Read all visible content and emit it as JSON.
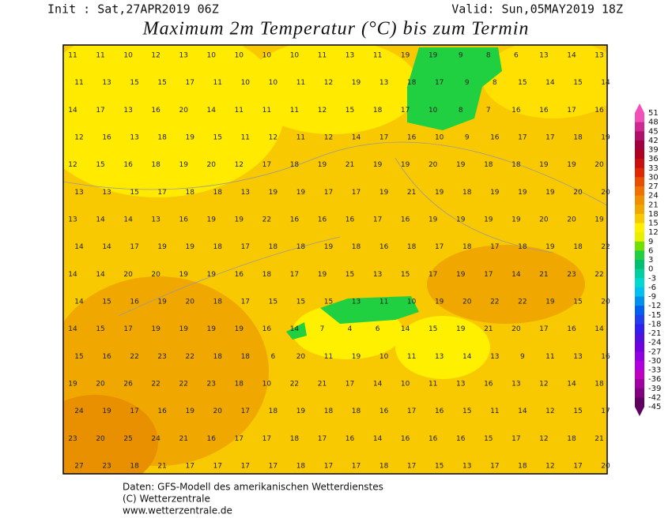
{
  "header": {
    "init": "Init : Sat,27APR2019 06Z",
    "valid": "Valid: Sun,05MAY2019 18Z",
    "title": "Maximum 2m Temperatur (°C) bis zum Termin"
  },
  "map": {
    "rows": [
      [
        11,
        11,
        10,
        12,
        13,
        10,
        10,
        10,
        10,
        11,
        13,
        11,
        19,
        19,
        9,
        8,
        6,
        13,
        14,
        13
      ],
      [
        11,
        13,
        15,
        15,
        17,
        11,
        10,
        10,
        11,
        12,
        19,
        13,
        18,
        17,
        9,
        8,
        15,
        14,
        15,
        14
      ],
      [
        14,
        17,
        13,
        16,
        20,
        14,
        11,
        11,
        11,
        12,
        15,
        18,
        17,
        10,
        8,
        7,
        16,
        16,
        17,
        16
      ],
      [
        12,
        16,
        13,
        18,
        19,
        15,
        11,
        12,
        11,
        12,
        14,
        17,
        16,
        10,
        9,
        16,
        17,
        17,
        18,
        19
      ],
      [
        12,
        15,
        16,
        18,
        19,
        20,
        12,
        17,
        18,
        19,
        21,
        19,
        19,
        20,
        19,
        18,
        18,
        19,
        19,
        20
      ],
      [
        13,
        13,
        15,
        17,
        18,
        18,
        13,
        19,
        19,
        17,
        17,
        19,
        21,
        19,
        18,
        19,
        19,
        19,
        20,
        20
      ],
      [
        13,
        14,
        14,
        13,
        16,
        19,
        19,
        22,
        16,
        16,
        16,
        17,
        16,
        19,
        19,
        19,
        19,
        20,
        20,
        19
      ],
      [
        14,
        14,
        17,
        19,
        19,
        18,
        17,
        18,
        18,
        19,
        18,
        16,
        18,
        17,
        18,
        17,
        18,
        19,
        18,
        22
      ],
      [
        14,
        14,
        20,
        20,
        19,
        19,
        16,
        18,
        17,
        19,
        15,
        13,
        15,
        17,
        19,
        17,
        14,
        21,
        23,
        22
      ],
      [
        14,
        15,
        16,
        19,
        20,
        18,
        17,
        15,
        15,
        15,
        13,
        11,
        10,
        19,
        20,
        22,
        22,
        19,
        15,
        20
      ],
      [
        14,
        15,
        17,
        19,
        19,
        19,
        19,
        16,
        14,
        7,
        4,
        6,
        14,
        15,
        19,
        21,
        20,
        17,
        16,
        14
      ],
      [
        15,
        16,
        22,
        23,
        22,
        18,
        18,
        6,
        20,
        11,
        19,
        10,
        11,
        13,
        14,
        13,
        9,
        11,
        13,
        16
      ],
      [
        19,
        20,
        26,
        22,
        22,
        23,
        18,
        10,
        22,
        21,
        17,
        14,
        10,
        11,
        13,
        16,
        13,
        12,
        14,
        18
      ],
      [
        24,
        19,
        17,
        16,
        19,
        20,
        17,
        18,
        19,
        18,
        18,
        16,
        17,
        16,
        15,
        11,
        14,
        12,
        15,
        17
      ],
      [
        23,
        20,
        25,
        24,
        21,
        16,
        17,
        17,
        18,
        17,
        16,
        14,
        16,
        16,
        16,
        15,
        17,
        12,
        18,
        21
      ],
      [
        27,
        23,
        18,
        21,
        17,
        17,
        17,
        17,
        18,
        17,
        17,
        18,
        17,
        15,
        13,
        17,
        18,
        12,
        17,
        20
      ]
    ]
  },
  "colorbar": {
    "labels": [
      51,
      48,
      45,
      42,
      39,
      36,
      33,
      30,
      27,
      24,
      21,
      18,
      15,
      12,
      9,
      6,
      3,
      0,
      -3,
      -6,
      -9,
      -12,
      -15,
      -18,
      -21,
      -24,
      -27,
      -30,
      -33,
      -36,
      -39,
      -42,
      -45
    ],
    "colors": [
      "#f050b8",
      "#d02890",
      "#b01068",
      "#a00040",
      "#b00020",
      "#c81010",
      "#e02800",
      "#e85000",
      "#f07000",
      "#f09000",
      "#f0a800",
      "#f8c800",
      "#fff000",
      "#e8f000",
      "#70e000",
      "#20d040",
      "#00c070",
      "#00d0a0",
      "#00d8d0",
      "#00c0f0",
      "#0090f0",
      "#0060f0",
      "#2040f0",
      "#3020f0",
      "#5010e0",
      "#7000e0",
      "#9000e0",
      "#b000e0",
      "#c000c0",
      "#a000a0",
      "#800080",
      "#600060"
    ]
  },
  "footer": {
    "source": "Daten: GFS-Modell des amerikanischen Wetterdienstes",
    "copyright": "(C) Wetterzentrale",
    "url": "www.wetterzentrale.de"
  }
}
